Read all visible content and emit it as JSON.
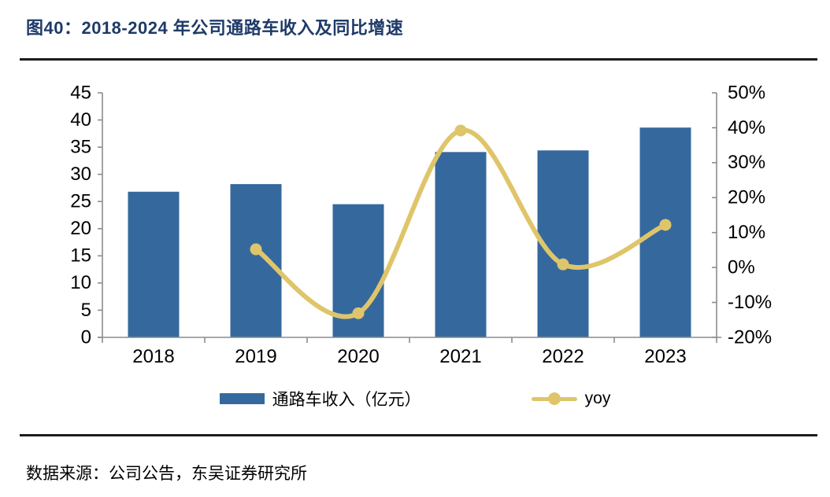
{
  "title": "图40：2018-2024 年公司通路车收入及同比增速",
  "source": "数据来源：公司公告，东吴证券研究所",
  "colors": {
    "bar": "#35699E",
    "line": "#DFC56A",
    "title_text": "#1E3A68",
    "axis": "#8C8C8C",
    "rule": "#1C1C1C",
    "label_text": "#000000"
  },
  "chart_data": {
    "type": "combo-bar-line",
    "title": "图40：2018-2024 年公司通路车收入及同比增速",
    "categories": [
      "2018",
      "2019",
      "2020",
      "2021",
      "2022",
      "2023"
    ],
    "series": [
      {
        "name": "通路车收入（亿元）",
        "type": "bar",
        "axis": "left",
        "values": [
          26.8,
          28.2,
          24.5,
          34.1,
          34.4,
          38.6
        ]
      },
      {
        "name": "yoy",
        "type": "line",
        "axis": "right",
        "unit": "%",
        "values": [
          null,
          5.2,
          -13.1,
          39.2,
          0.9,
          12.2
        ]
      }
    ],
    "left_axis": {
      "min": 0,
      "max": 45,
      "step": 5,
      "tick_labels": [
        "45",
        "40",
        "35",
        "30",
        "25",
        "20",
        "15",
        "10",
        "5",
        "0"
      ]
    },
    "right_axis": {
      "min": -20,
      "max": 50,
      "step": 10,
      "tick_labels": [
        "50%",
        "40%",
        "30%",
        "20%",
        "10%",
        "0%",
        "-10%",
        "-20%"
      ]
    },
    "grid": false,
    "legend_position": "bottom"
  }
}
